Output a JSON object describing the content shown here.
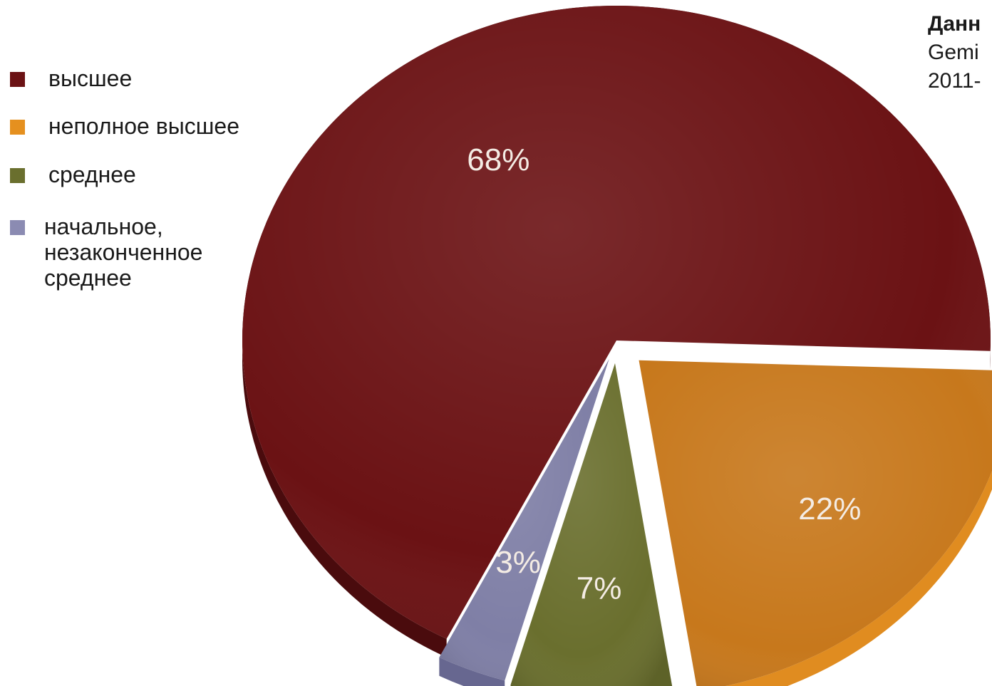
{
  "chart_data": {
    "type": "pie",
    "title": "",
    "legend_position": "left",
    "slices": [
      {
        "label": "высшее",
        "value": 68,
        "value_label": "68%",
        "color": "#6b1214",
        "side_color": "#4a0b0d"
      },
      {
        "label": "неполное высшее",
        "value": 22,
        "value_label": "22%",
        "color": "#c7781c",
        "side_color": "#e08c20"
      },
      {
        "label": "среднее",
        "value": 7,
        "value_label": "7%",
        "color": "#6a6f2e",
        "side_color": "#555a20"
      },
      {
        "label": "начальное,\nнезаконченное\nсреднее",
        "value": 3,
        "value_label": "3%",
        "color": "#7f7fa6",
        "side_color": "#676790"
      }
    ]
  },
  "note": {
    "title": "Данн",
    "line1": "Gemi",
    "line2": "2011-"
  }
}
